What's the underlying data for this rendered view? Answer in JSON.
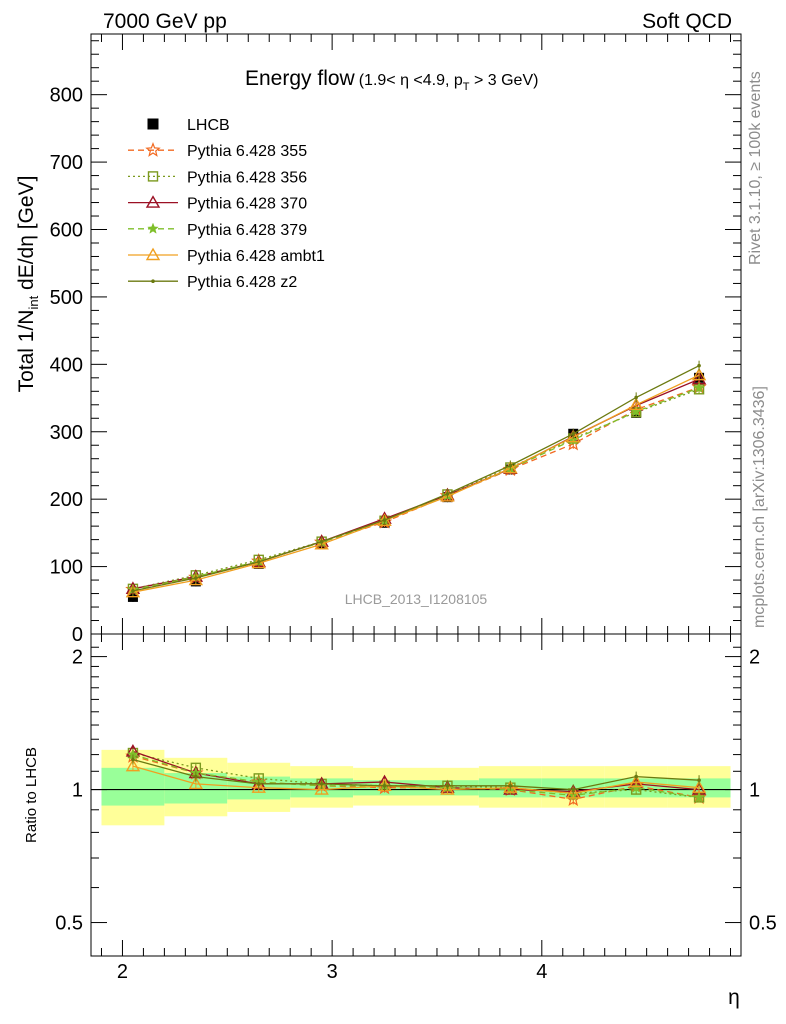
{
  "header": {
    "left": "7000 GeV pp",
    "right": "Soft QCD"
  },
  "side_labels": {
    "rivet": "Rivet 3.1.10, ≥ 100k events",
    "source": "mcplots.cern.ch [arXiv:1306.3436]"
  },
  "watermark": "LHCB_2013_I1208105",
  "main_title": {
    "text": "Energy flow",
    "cut_parts": [
      "(1.9< η <4.9, p",
      "T",
      " > 3 GeV)"
    ]
  },
  "y_label_parts": [
    "Total 1/N",
    "int",
    " dE/dη [GeV]"
  ],
  "ratio_ylabel": "Ratio to LHCB",
  "x_label": "η",
  "chart_data": [
    {
      "type": "line",
      "panel": "main",
      "ylim": [
        0,
        890
      ],
      "xlim": [
        1.85,
        4.95
      ],
      "yticks": [
        0,
        100,
        200,
        300,
        400,
        500,
        600,
        700,
        800
      ],
      "ytick_labels": [
        "0",
        "100",
        "200",
        "300",
        "400",
        "500",
        "600",
        "700",
        "800"
      ],
      "x": [
        2.05,
        2.35,
        2.65,
        2.95,
        3.25,
        3.55,
        3.85,
        4.15,
        4.45,
        4.75
      ],
      "series": [
        {
          "name": "LHCB",
          "color": "#000000",
          "marker": "square-filled",
          "dash": "none",
          "values": [
            55,
            78,
            104,
            133,
            165,
            203,
            244,
            297,
            328,
            380
          ]
        },
        {
          "name": "Pythia 6.428 355",
          "color": "#f26a21",
          "marker": "star-open",
          "dash": "6,4",
          "values": [
            66,
            84,
            108,
            136,
            166,
            205,
            244,
            282,
            333,
            366
          ]
        },
        {
          "name": "Pythia 6.428 356",
          "color": "#7c9a1f",
          "marker": "square-open",
          "dash": "2,3",
          "values": [
            67,
            87,
            110,
            137,
            168,
            207,
            247,
            290,
            329,
            363
          ]
        },
        {
          "name": "Pythia 6.428 370",
          "color": "#9b1024",
          "marker": "triangle-open",
          "dash": "none",
          "values": [
            67,
            85,
            107,
            137,
            171,
            206,
            245,
            293,
            339,
            378
          ]
        },
        {
          "name": "Pythia 6.428 379",
          "color": "#7fbf2a",
          "marker": "star-filled",
          "dash": "6,4",
          "values": [
            66,
            85,
            108,
            136,
            168,
            205,
            245,
            288,
            330,
            365
          ]
        },
        {
          "name": "Pythia 6.428 ambt1",
          "color": "#f0a020",
          "marker": "triangle-open",
          "dash": "none",
          "values": [
            62,
            80,
            105,
            133,
            168,
            204,
            246,
            292,
            340,
            384
          ]
        },
        {
          "name": "Pythia 6.428 z2",
          "color": "#6b7a10",
          "marker": "dot",
          "dash": "none",
          "values": [
            64,
            83,
            107,
            137,
            169,
            208,
            250,
            297,
            351,
            398
          ]
        }
      ]
    },
    {
      "type": "line",
      "panel": "ratio",
      "ylim": [
        0.42,
        2.25
      ],
      "log_scale": true,
      "yticks": [
        0.5,
        1,
        2
      ],
      "ytick_labels": [
        "0.5",
        "1",
        "2"
      ],
      "xticks": [
        2,
        3,
        4
      ],
      "xtick_labels": [
        "2",
        "3",
        "4"
      ],
      "bins": [
        [
          1.9,
          2.2
        ],
        [
          2.2,
          2.5
        ],
        [
          2.5,
          2.8
        ],
        [
          2.8,
          3.1
        ],
        [
          3.1,
          3.4
        ],
        [
          3.4,
          3.7
        ],
        [
          3.7,
          4.0
        ],
        [
          4.0,
          4.3
        ],
        [
          4.3,
          4.6
        ],
        [
          4.6,
          4.9
        ]
      ],
      "band_green": [
        [
          0.92,
          1.12
        ],
        [
          0.93,
          1.09
        ],
        [
          0.95,
          1.07
        ],
        [
          0.96,
          1.06
        ],
        [
          0.97,
          1.05
        ],
        [
          0.97,
          1.05
        ],
        [
          0.96,
          1.06
        ],
        [
          0.96,
          1.06
        ],
        [
          0.96,
          1.06
        ],
        [
          0.96,
          1.06
        ]
      ],
      "band_yellow": [
        [
          0.83,
          1.23
        ],
        [
          0.87,
          1.18
        ],
        [
          0.89,
          1.15
        ],
        [
          0.91,
          1.13
        ],
        [
          0.92,
          1.12
        ],
        [
          0.92,
          1.12
        ],
        [
          0.91,
          1.13
        ],
        [
          0.91,
          1.13
        ],
        [
          0.91,
          1.13
        ],
        [
          0.91,
          1.13
        ]
      ],
      "x": [
        2.05,
        2.35,
        2.65,
        2.95,
        3.25,
        3.55,
        3.85,
        4.15,
        4.45,
        4.75
      ],
      "series": [
        {
          "name": "Pythia 6.428 355",
          "color": "#f26a21",
          "marker": "star-open",
          "dash": "6,4",
          "values": [
            1.19,
            1.09,
            1.04,
            1.02,
            1.01,
            1.01,
            1.0,
            0.95,
            1.02,
            0.96
          ]
        },
        {
          "name": "Pythia 6.428 356",
          "color": "#7c9a1f",
          "marker": "square-open",
          "dash": "2,3",
          "values": [
            1.21,
            1.12,
            1.06,
            1.03,
            1.02,
            1.02,
            1.01,
            0.98,
            1.0,
            0.96
          ]
        },
        {
          "name": "Pythia 6.428 370",
          "color": "#9b1024",
          "marker": "triangle-open",
          "dash": "none",
          "values": [
            1.22,
            1.09,
            1.03,
            1.03,
            1.04,
            1.01,
            1.0,
            0.99,
            1.03,
            1.0
          ]
        },
        {
          "name": "Pythia 6.428 379",
          "color": "#7fbf2a",
          "marker": "star-filled",
          "dash": "6,4",
          "values": [
            1.2,
            1.09,
            1.04,
            1.02,
            1.02,
            1.01,
            1.0,
            0.97,
            1.01,
            0.96
          ]
        },
        {
          "name": "Pythia 6.428 ambt1",
          "color": "#f0a020",
          "marker": "triangle-open",
          "dash": "none",
          "values": [
            1.13,
            1.03,
            1.01,
            1.0,
            1.02,
            1.0,
            1.01,
            0.98,
            1.04,
            1.01
          ]
        },
        {
          "name": "Pythia 6.428 z2",
          "color": "#6b7a10",
          "marker": "dot",
          "dash": "none",
          "values": [
            1.17,
            1.07,
            1.03,
            1.03,
            1.02,
            1.02,
            1.02,
            1.0,
            1.07,
            1.05
          ]
        }
      ]
    }
  ]
}
